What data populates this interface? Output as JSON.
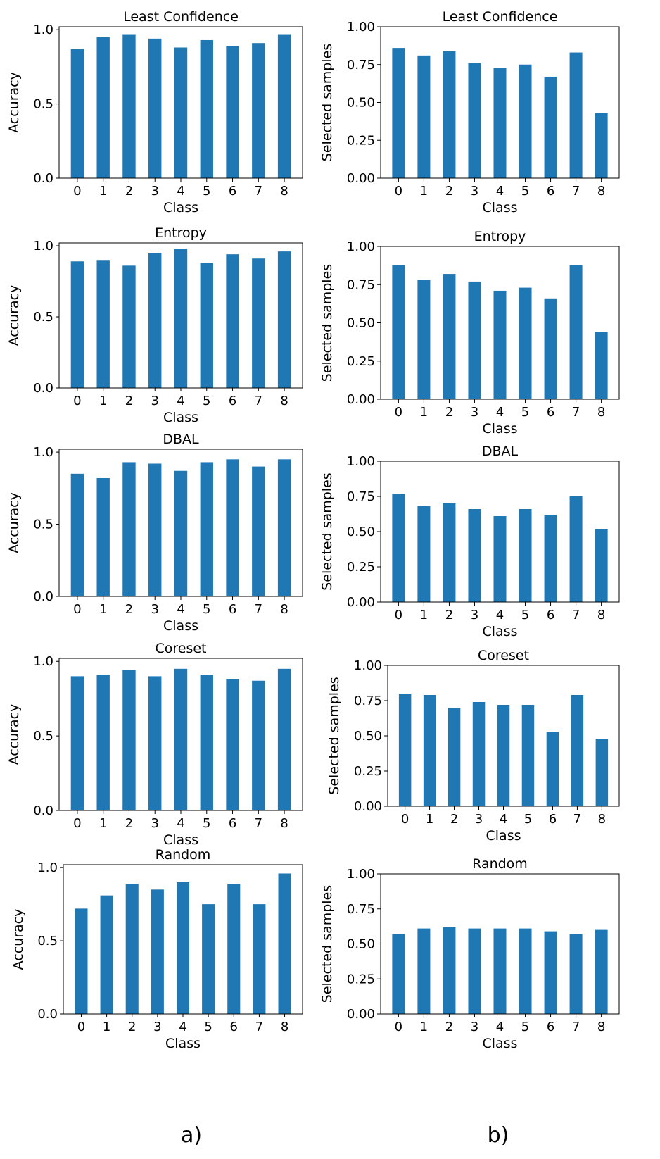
{
  "colors": {
    "bar": "#1f77b4",
    "axis": "#000000",
    "background": "#ffffff"
  },
  "captions": [
    "a)",
    "b)"
  ],
  "chart_data": [
    {
      "type": "bar",
      "title": "Least Confidence",
      "xlabel": "Class",
      "ylabel": "Accuracy",
      "categories": [
        "0",
        "1",
        "2",
        "3",
        "4",
        "5",
        "6",
        "7",
        "8"
      ],
      "values": [
        0.87,
        0.95,
        0.97,
        0.94,
        0.88,
        0.93,
        0.89,
        0.91,
        0.97
      ],
      "ylim": [
        0,
        1.02
      ],
      "yticks": [
        "0.0",
        "0.5",
        "1.0"
      ],
      "ytick_values": [
        0,
        0.5,
        1.0
      ],
      "grid": false,
      "legend": "none"
    },
    {
      "type": "bar",
      "title": "Least Confidence",
      "xlabel": "Class",
      "ylabel": "Selected samples",
      "categories": [
        "0",
        "1",
        "2",
        "3",
        "4",
        "5",
        "6",
        "7",
        "8"
      ],
      "values": [
        0.86,
        0.81,
        0.84,
        0.76,
        0.73,
        0.75,
        0.67,
        0.83,
        0.43
      ],
      "ylim": [
        0,
        1.0
      ],
      "yticks": [
        "0.00",
        "0.25",
        "0.50",
        "0.75",
        "1.00"
      ],
      "ytick_values": [
        0,
        0.25,
        0.5,
        0.75,
        1.0
      ],
      "grid": false,
      "legend": "none"
    },
    {
      "type": "bar",
      "title": "Entropy",
      "xlabel": "Class",
      "ylabel": "Accuracy",
      "categories": [
        "0",
        "1",
        "2",
        "3",
        "4",
        "5",
        "6",
        "7",
        "8"
      ],
      "values": [
        0.89,
        0.9,
        0.86,
        0.95,
        0.98,
        0.88,
        0.94,
        0.91,
        0.96
      ],
      "ylim": [
        0,
        1.02
      ],
      "yticks": [
        "0.0",
        "0.5",
        "1.0"
      ],
      "ytick_values": [
        0,
        0.5,
        1.0
      ],
      "grid": false,
      "legend": "none"
    },
    {
      "type": "bar",
      "title": "Entropy",
      "xlabel": "Class",
      "ylabel": "Selected samples",
      "categories": [
        "0",
        "1",
        "2",
        "3",
        "4",
        "5",
        "6",
        "7",
        "8"
      ],
      "values": [
        0.88,
        0.78,
        0.82,
        0.77,
        0.71,
        0.73,
        0.66,
        0.88,
        0.44
      ],
      "ylim": [
        0,
        1.0
      ],
      "yticks": [
        "0.00",
        "0.25",
        "0.50",
        "0.75",
        "1.00"
      ],
      "ytick_values": [
        0,
        0.25,
        0.5,
        0.75,
        1.0
      ],
      "grid": false,
      "legend": "none"
    },
    {
      "type": "bar",
      "title": "DBAL",
      "xlabel": "Class",
      "ylabel": "Accuracy",
      "categories": [
        "0",
        "1",
        "2",
        "3",
        "4",
        "5",
        "6",
        "7",
        "8"
      ],
      "values": [
        0.85,
        0.82,
        0.93,
        0.92,
        0.87,
        0.93,
        0.95,
        0.9,
        0.95
      ],
      "ylim": [
        0,
        1.02
      ],
      "yticks": [
        "0.0",
        "0.5",
        "1.0"
      ],
      "ytick_values": [
        0,
        0.5,
        1.0
      ],
      "grid": false,
      "legend": "none"
    },
    {
      "type": "bar",
      "title": "DBAL",
      "xlabel": "Class",
      "ylabel": "Selected samples",
      "categories": [
        "0",
        "1",
        "2",
        "3",
        "4",
        "5",
        "6",
        "7",
        "8"
      ],
      "values": [
        0.77,
        0.68,
        0.7,
        0.66,
        0.61,
        0.66,
        0.62,
        0.75,
        0.52
      ],
      "ylim": [
        0,
        1.0
      ],
      "yticks": [
        "0.00",
        "0.25",
        "0.50",
        "0.75",
        "1.00"
      ],
      "ytick_values": [
        0,
        0.25,
        0.5,
        0.75,
        1.0
      ],
      "grid": false,
      "legend": "none"
    },
    {
      "type": "bar",
      "title": "Coreset",
      "xlabel": "Class",
      "ylabel": "Accuracy",
      "categories": [
        "0",
        "1",
        "2",
        "3",
        "4",
        "5",
        "6",
        "7",
        "8"
      ],
      "values": [
        0.9,
        0.91,
        0.94,
        0.9,
        0.95,
        0.91,
        0.88,
        0.87,
        0.95
      ],
      "ylim": [
        0,
        1.02
      ],
      "yticks": [
        "0.0",
        "0.5",
        "1.0"
      ],
      "ytick_values": [
        0,
        0.5,
        1.0
      ],
      "grid": false,
      "legend": "none"
    },
    {
      "type": "bar",
      "title": "Coreset",
      "xlabel": "Class",
      "ylabel": "Selected samples",
      "categories": [
        "0",
        "1",
        "2",
        "3",
        "4",
        "5",
        "6",
        "7",
        "8"
      ],
      "values": [
        0.8,
        0.79,
        0.7,
        0.74,
        0.72,
        0.72,
        0.53,
        0.79,
        0.48
      ],
      "ylim": [
        0,
        1.0
      ],
      "yticks": [
        "0.00",
        "0.25",
        "0.50",
        "0.75",
        "1.00"
      ],
      "ytick_values": [
        0,
        0.25,
        0.5,
        0.75,
        1.0
      ],
      "grid": false,
      "legend": "none"
    },
    {
      "type": "bar",
      "title": "Random",
      "xlabel": "Class",
      "ylabel": "Accuracy",
      "categories": [
        "0",
        "1",
        "2",
        "3",
        "4",
        "5",
        "6",
        "7",
        "8"
      ],
      "values": [
        0.72,
        0.81,
        0.89,
        0.85,
        0.9,
        0.75,
        0.89,
        0.75,
        0.96
      ],
      "ylim": [
        0,
        1.02
      ],
      "yticks": [
        "0.0",
        "0.5",
        "1.0"
      ],
      "ytick_values": [
        0,
        0.5,
        1.0
      ],
      "grid": false,
      "legend": "none"
    },
    {
      "type": "bar",
      "title": "Random",
      "xlabel": "Class",
      "ylabel": "Selected samples",
      "categories": [
        "0",
        "1",
        "2",
        "3",
        "4",
        "5",
        "6",
        "7",
        "8"
      ],
      "values": [
        0.57,
        0.61,
        0.62,
        0.61,
        0.61,
        0.61,
        0.59,
        0.57,
        0.6
      ],
      "ylim": [
        0,
        1.0
      ],
      "yticks": [
        "0.00",
        "0.25",
        "0.50",
        "0.75",
        "1.00"
      ],
      "ytick_values": [
        0,
        0.25,
        0.5,
        0.75,
        1.0
      ],
      "grid": false,
      "legend": "none"
    }
  ]
}
